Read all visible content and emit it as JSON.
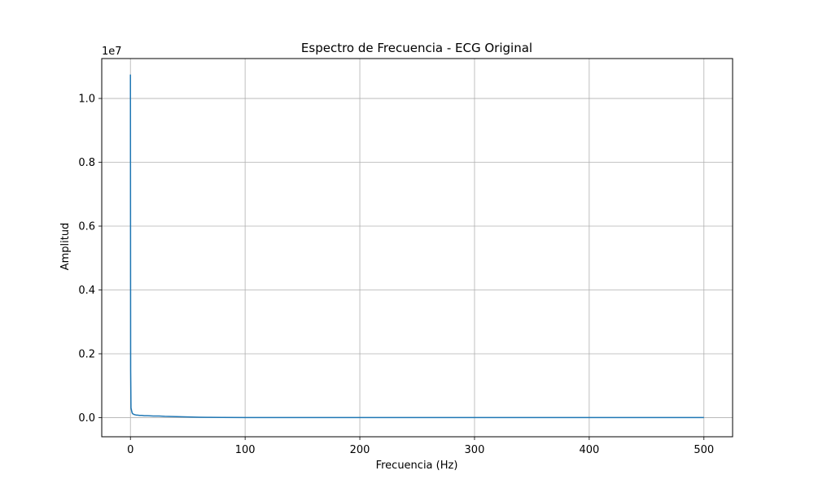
{
  "chart_data": {
    "type": "line",
    "title": "Espectro de Frecuencia - ECG Original",
    "xlabel": "Frecuencia (Hz)",
    "ylabel": "Amplitud",
    "y_offset_label": "1e7",
    "xlim": [
      -25,
      525
    ],
    "ylim": [
      -0.06,
      1.125
    ],
    "y_scale_factor": 10000000,
    "xticks": [
      0,
      100,
      200,
      300,
      400,
      500
    ],
    "xtick_labels": [
      "0",
      "100",
      "200",
      "300",
      "400",
      "500"
    ],
    "yticks": [
      0.0,
      0.2,
      0.4,
      0.6,
      0.8,
      1.0
    ],
    "ytick_labels": [
      "0.0",
      "0.2",
      "0.4",
      "0.6",
      "0.8",
      "1.0"
    ],
    "grid": true,
    "line_color": "#1f77b4",
    "series": [
      {
        "x": [
          0,
          0.2,
          0.5,
          1,
          1.5,
          2,
          3,
          4,
          5,
          6,
          8,
          10,
          12,
          15,
          20,
          25,
          30,
          40,
          50,
          60,
          70,
          80,
          100,
          150,
          200,
          250,
          300,
          350,
          400,
          450,
          500
        ],
        "values": [
          1.075,
          0.15,
          0.03,
          0.022,
          0.015,
          0.012,
          0.01,
          0.009,
          0.008,
          0.008,
          0.007,
          0.007,
          0.006,
          0.006,
          0.005,
          0.005,
          0.004,
          0.003,
          0.002,
          0.001,
          0.0008,
          0.0005,
          0.0003,
          0.0002,
          0.0001,
          0.0001,
          0.0001,
          0.0001,
          0.0001,
          0.0001,
          0.0001
        ]
      }
    ]
  }
}
